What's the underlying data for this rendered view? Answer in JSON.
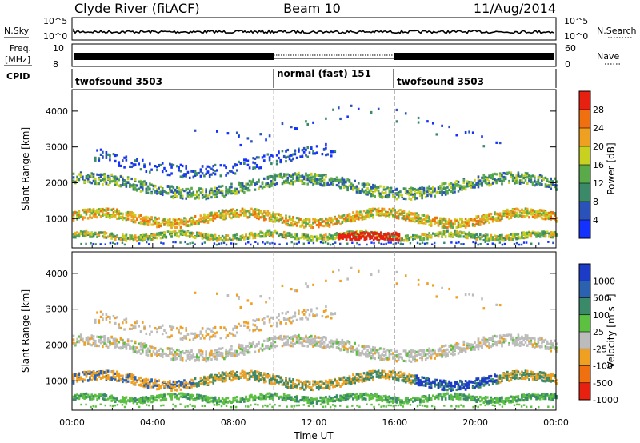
{
  "header": {
    "station": "Clyde River (fitACF)",
    "beam": "Beam 10",
    "date": "11/Aug/2014"
  },
  "sky_panel": {
    "left_label": "N.Sky",
    "left_ticks": [
      "10^5",
      "10^0"
    ],
    "right_ticks": [
      "10^5",
      "10^0"
    ],
    "right_label": "N.Search"
  },
  "freq_panel": {
    "left_label_1": "Freq.",
    "left_label_2": "[MHz]",
    "left_ticks": [
      "10",
      "8"
    ],
    "right_ticks": [
      "60",
      "0"
    ],
    "right_label": "Nave"
  },
  "cpid": {
    "label": "CPID",
    "segments": [
      {
        "name": "twofsound 3503",
        "start_h": 0,
        "end_h": 10
      },
      {
        "name": "normal (fast) 151",
        "start_h": 10,
        "end_h": 16
      },
      {
        "name": "twofsound 3503",
        "start_h": 16,
        "end_h": 24
      }
    ]
  },
  "chart_data": [
    {
      "type": "heatmap",
      "title": "",
      "ylabel": "Slant Range [km]",
      "xlabel": "",
      "ylim": [
        180,
        4600
      ],
      "xlim_hours": [
        0,
        24
      ],
      "y_ticks": [
        1000,
        2000,
        3000,
        4000
      ],
      "colorbar": {
        "label": "Power [dB]",
        "ticks": [
          "4",
          "8",
          "12",
          "16",
          "20",
          "24",
          "28"
        ],
        "colors": [
          "#1432ff",
          "#2a52b8",
          "#3a8a6a",
          "#5aaa4a",
          "#c8d020",
          "#f0a020",
          "#f07010",
          "#e82010"
        ]
      }
    },
    {
      "type": "heatmap",
      "title": "",
      "ylabel": "Slant Range [km]",
      "xlabel": "Time UT",
      "ylim": [
        180,
        4600
      ],
      "xlim_hours": [
        0,
        24
      ],
      "y_ticks": [
        1000,
        2000,
        3000,
        4000
      ],
      "x_ticks": [
        "00:00",
        "04:00",
        "08:00",
        "12:00",
        "16:00",
        "20:00",
        "00:00"
      ],
      "colorbar": {
        "label": "Velocity [m s⁻¹]",
        "ticks": [
          "1000",
          "500",
          "100",
          "25",
          "-25",
          "-100",
          "-500",
          "-1000"
        ],
        "colors": [
          "#1c3cc8",
          "#2a62b0",
          "#3a8a6a",
          "#5cc040",
          "#bcbcbc",
          "#f0a020",
          "#f07010",
          "#e82010"
        ]
      }
    }
  ]
}
